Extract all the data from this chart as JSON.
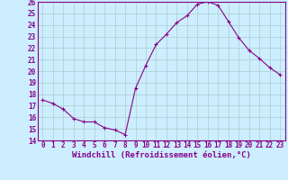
{
  "x": [
    0,
    1,
    2,
    3,
    4,
    5,
    6,
    7,
    8,
    9,
    10,
    11,
    12,
    13,
    14,
    15,
    16,
    17,
    18,
    19,
    20,
    21,
    22,
    23
  ],
  "y": [
    17.5,
    17.2,
    16.7,
    15.9,
    15.6,
    15.6,
    15.1,
    14.9,
    14.5,
    18.5,
    20.5,
    22.3,
    23.2,
    24.2,
    24.8,
    25.8,
    26.0,
    25.7,
    24.3,
    22.9,
    21.8,
    21.1,
    20.3,
    19.7
  ],
  "ylim": [
    14,
    26
  ],
  "yticks": [
    14,
    15,
    16,
    17,
    18,
    19,
    20,
    21,
    22,
    23,
    24,
    25,
    26
  ],
  "xticks": [
    0,
    1,
    2,
    3,
    4,
    5,
    6,
    7,
    8,
    9,
    10,
    11,
    12,
    13,
    14,
    15,
    16,
    17,
    18,
    19,
    20,
    21,
    22,
    23
  ],
  "line_color": "#880088",
  "marker": "+",
  "bg_color": "#cceeff",
  "grid_color": "#aacccc",
  "xlabel": "Windchill (Refroidissement éolien,°C)",
  "label_fontsize": 6.5,
  "tick_fontsize": 5.5
}
